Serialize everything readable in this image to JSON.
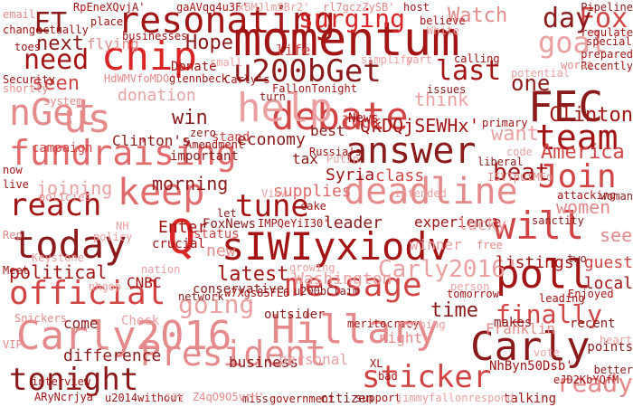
{
  "words": [
    {
      "text": "momentum",
      "color": "#a31515"
    },
    {
      "text": "sIWIyxiodv",
      "color": "#a31515"
    },
    {
      "text": "Hillary",
      "color": "#e58a8a"
    },
    {
      "text": "Carly2016",
      "color": "#e58a8a"
    },
    {
      "text": "Carly",
      "color": "#8b1a1a"
    },
    {
      "text": "debate",
      "color": "#d14545"
    },
    {
      "text": "chip",
      "color": "#d92525"
    },
    {
      "text": "fundraising",
      "color": "#e06a6a"
    },
    {
      "text": "deadline",
      "color": "#e58a8a"
    },
    {
      "text": "today",
      "color": "#8b1a1a"
    },
    {
      "text": "answer",
      "color": "#8b1a1a"
    },
    {
      "text": "FEC",
      "color": "#8b1a1a"
    },
    {
      "text": "poll",
      "color": "#a31515"
    },
    {
      "text": "President",
      "color": "#e58a8a"
    },
    {
      "text": "message",
      "color": "#d14545"
    },
    {
      "text": "keep",
      "color": "#e06a6a"
    },
    {
      "text": "help",
      "color": "#eaa0a0"
    },
    {
      "text": "nGet",
      "color": "#e58a8a"
    },
    {
      "text": "us",
      "color": "#e58a8a"
    },
    {
      "text": "resonating",
      "color": "#a31515"
    },
    {
      "text": "will",
      "color": "#d14545"
    },
    {
      "text": "u200bGet",
      "color": "#8b1a1a"
    },
    {
      "text": "official",
      "color": "#d14545"
    },
    {
      "text": "Q",
      "color": "#d92525"
    },
    {
      "text": "team",
      "color": "#a31515"
    },
    {
      "text": "tonight",
      "color": "#8b1a1a"
    },
    {
      "text": "sticker",
      "color": "#d14545"
    },
    {
      "text": "reach",
      "color": "#a31515"
    },
    {
      "text": "Join",
      "color": "#d14545"
    },
    {
      "text": "tune",
      "color": "#a31515"
    },
    {
      "text": "need",
      "color": "#a31515"
    },
    {
      "text": "goal",
      "color": "#eaa0a0"
    },
    {
      "text": "surging",
      "color": "#d92525"
    },
    {
      "text": "last",
      "color": "#a31515"
    },
    {
      "text": "finally",
      "color": "#d14545"
    },
    {
      "text": "ready",
      "color": "#e58a8a"
    },
    {
      "text": "going",
      "color": "#eaa0a0"
    },
    {
      "text": "political",
      "color": "#a31515"
    },
    {
      "text": "Carly2016'",
      "color": "#eaa0a0"
    },
    {
      "text": "ET",
      "color": "#8b1a1a"
    },
    {
      "text": "Fox",
      "color": "#d14545"
    },
    {
      "text": "day",
      "color": "#8b1a1a"
    },
    {
      "text": "Watch",
      "color": "#e58a8a"
    },
    {
      "text": "Hope",
      "color": "#8b1a1a"
    },
    {
      "text": "next",
      "color": "#8b1a1a"
    },
    {
      "text": "seen",
      "color": "#d14545"
    },
    {
      "text": "one",
      "color": "#8b1a1a"
    },
    {
      "text": "QkDQjSEWHx'",
      "color": "#a31515"
    },
    {
      "text": "Clinton",
      "color": "#a31515"
    },
    {
      "text": "America",
      "color": "#d14545"
    },
    {
      "text": "women",
      "color": "#e58a8a"
    },
    {
      "text": "beat",
      "color": "#a31515"
    },
    {
      "text": "want",
      "color": "#eaa0a0"
    },
    {
      "text": "joining",
      "color": "#eaa0a0"
    },
    {
      "text": "win",
      "color": "#8b1a1a"
    },
    {
      "text": "donation",
      "color": "#eaa0a0"
    },
    {
      "text": "think",
      "color": "#eaa0a0"
    },
    {
      "text": "look",
      "color": "#d14545"
    },
    {
      "text": "time",
      "color": "#8b1a1a"
    },
    {
      "text": "latest",
      "color": "#a31515"
    },
    {
      "text": "new",
      "color": "#e58a8a"
    },
    {
      "text": "Washington",
      "color": "#eaa0a0"
    },
    {
      "text": "economy",
      "color": "#8b1a1a"
    },
    {
      "text": "morning",
      "color": "#8b1a1a"
    },
    {
      "text": "campaign",
      "color": "#d14545"
    },
    {
      "text": "leader",
      "color": "#8b1a1a"
    },
    {
      "text": "listings",
      "color": "#a31515"
    },
    {
      "text": "see",
      "color": "#e58a8a"
    },
    {
      "text": "guest",
      "color": "#d14545"
    },
    {
      "text": "local",
      "color": "#a31515"
    },
    {
      "text": "Enter",
      "color": "#a31515"
    },
    {
      "text": "supplies",
      "color": "#e06a6a"
    },
    {
      "text": "class",
      "color": "#d14545"
    },
    {
      "text": "Syria",
      "color": "#a31515"
    },
    {
      "text": "difference",
      "color": "#8b1a1a"
    },
    {
      "text": "business",
      "color": "#8b1a1a"
    },
    {
      "text": "personal",
      "color": "#eaa0a0"
    },
    {
      "text": "NhByn50Dsb'",
      "color": "#a31515"
    },
    {
      "text": "CNBC",
      "color": "#a31515"
    },
    {
      "text": "come",
      "color": "#8b1a1a"
    },
    {
      "text": "Check",
      "color": "#eaa0a0"
    },
    {
      "text": "conservative",
      "color": "#8b1a1a"
    },
    {
      "text": "important",
      "color": "#8b1a1a"
    },
    {
      "text": "Clinton's",
      "color": "#8b1a1a"
    },
    {
      "text": "stand",
      "color": "#d14545"
    },
    {
      "text": "best",
      "color": "#8b1a1a"
    },
    {
      "text": "tax",
      "color": "#8b1a1a"
    },
    {
      "text": "News",
      "color": "#a31515"
    },
    {
      "text": "experience",
      "color": "#a31515"
    },
    {
      "text": "winner",
      "color": "#eaa0a0"
    },
    {
      "text": "lucky",
      "color": "#eaa0a0"
    },
    {
      "text": "flying",
      "color": "#e58a8a"
    },
    {
      "text": "Donate",
      "color": "#a31515"
    },
    {
      "text": "life",
      "color": "#d14545"
    },
    {
      "text": "FoxNews",
      "color": "#8b1a1a"
    },
    {
      "text": "IMPQeYiI30'",
      "color": "#a31515"
    },
    {
      "text": "status",
      "color": "#d14545"
    },
    {
      "text": "crucial",
      "color": "#a31515"
    },
    {
      "text": "outsider",
      "color": "#8b1a1a"
    },
    {
      "text": "night",
      "color": "#e58a8a"
    },
    {
      "text": "Franklin",
      "color": "#e58a8a"
    },
    {
      "text": "makes",
      "color": "#8b1a1a"
    },
    {
      "text": "recent",
      "color": "#8b1a1a"
    },
    {
      "text": "points",
      "color": "#8b1a1a"
    },
    {
      "text": "better",
      "color": "#8b1a1a"
    },
    {
      "text": "eJD2KbYQfM",
      "color": "#a31515"
    },
    {
      "text": "talking",
      "color": "#a31515"
    },
    {
      "text": "support",
      "color": "#a31515"
    },
    {
      "text": "citizen",
      "color": "#8b1a1a"
    },
    {
      "text": "government",
      "color": "#a31515"
    },
    {
      "text": "miss",
      "color": "#8b1a1a"
    },
    {
      "text": "Z4qO9O5vrH'",
      "color": "#e58a8a"
    },
    {
      "text": "u2014without",
      "color": "#a31515"
    },
    {
      "text": "ARyNcrjya'",
      "color": "#a31515"
    },
    {
      "text": "interview",
      "color": "#a31515"
    },
    {
      "text": "VIP",
      "color": "#e58a8a"
    },
    {
      "text": "Snickers",
      "color": "#e58a8a"
    },
    {
      "text": "Meet",
      "color": "#a31515"
    },
    {
      "text": "Rep",
      "color": "#e58a8a"
    },
    {
      "text": "Keystone",
      "color": "#eaa0a0"
    },
    {
      "text": "policies",
      "color": "#e58a8a"
    },
    {
      "text": "live",
      "color": "#a31515"
    },
    {
      "text": "now",
      "color": "#a31515"
    },
    {
      "text": "system",
      "color": "#e58a8a"
    },
    {
      "text": "shortly",
      "color": "#e58a8a"
    },
    {
      "text": "Security",
      "color": "#a31515"
    },
    {
      "text": "toes",
      "color": "#a31515"
    },
    {
      "text": "change",
      "color": "#a31515"
    },
    {
      "text": "email",
      "color": "#e58a8a"
    },
    {
      "text": "RpEneXQvjA'",
      "color": "#a31515"
    },
    {
      "text": "actually",
      "color": "#a31515"
    },
    {
      "text": "place",
      "color": "#a31515"
    },
    {
      "text": "gaAVqq4u3F'",
      "color": "#a31515"
    },
    {
      "text": "xBMJlmSBr2'",
      "color": "#eaa0a0"
    },
    {
      "text": "rl7gczZySB'",
      "color": "#e58a8a"
    },
    {
      "text": "host",
      "color": "#a31515"
    },
    {
      "text": "believe",
      "color": "#a31515"
    },
    {
      "text": "White",
      "color": "#eaa0a0"
    },
    {
      "text": "Pipeline",
      "color": "#8b1a1a"
    },
    {
      "text": "regulate",
      "color": "#a31515"
    },
    {
      "text": "special",
      "color": "#a31515"
    },
    {
      "text": "prepared",
      "color": "#a31515"
    },
    {
      "text": "Recently",
      "color": "#a31515"
    },
    {
      "text": "worst",
      "color": "#e58a8a"
    },
    {
      "text": "potential",
      "color": "#eaa0a0"
    },
    {
      "text": "calling",
      "color": "#a31515"
    },
    {
      "text": "simplify",
      "color": "#eaa0a0"
    },
    {
      "text": "part",
      "color": "#eaa0a0"
    },
    {
      "text": "issues",
      "color": "#8b1a1a"
    },
    {
      "text": "FallonTonight",
      "color": "#a31515"
    },
    {
      "text": "turn",
      "color": "#8b1a1a"
    },
    {
      "text": "Carly's",
      "color": "#a31515"
    },
    {
      "text": "small",
      "color": "#eaa0a0"
    },
    {
      "text": "businesses",
      "color": "#a31515"
    },
    {
      "text": "HdWMVfoMDO'",
      "color": "#e58a8a"
    },
    {
      "text": "glennbeck",
      "color": "#a31515"
    },
    {
      "text": "zero",
      "color": "#8b1a1a"
    },
    {
      "text": "Amendment",
      "color": "#a31515"
    },
    {
      "text": "primary",
      "color": "#a31515"
    },
    {
      "text": "code",
      "color": "#eaa0a0"
    },
    {
      "text": "liberal",
      "color": "#8b1a1a"
    },
    {
      "text": "intended",
      "color": "#eaa0a0"
    },
    {
      "text": "ISVTputMEo",
      "color": "#e58a8a"
    },
    {
      "text": "attacking",
      "color": "#a31515"
    },
    {
      "text": "woman",
      "color": "#8b1a1a"
    },
    {
      "text": "sanctity",
      "color": "#8b1a1a"
    },
    {
      "text": "two",
      "color": "#8b1a1a"
    },
    {
      "text": "free",
      "color": "#e58a8a"
    },
    {
      "text": "Russia's",
      "color": "#a31515"
    },
    {
      "text": "Putin",
      "color": "#eaa0a0"
    },
    {
      "text": "cake",
      "color": "#a31515"
    },
    {
      "text": "View",
      "color": "#eaa0a0"
    },
    {
      "text": "let",
      "color": "#8b1a1a"
    },
    {
      "text": "NH",
      "color": "#eaa0a0"
    },
    {
      "text": "policy",
      "color": "#eaa0a0"
    },
    {
      "text": "nation",
      "color": "#eaa0a0"
    },
    {
      "text": "nhgop",
      "color": "#eaa0a0"
    },
    {
      "text": "network",
      "color": "#8b1a1a"
    },
    {
      "text": "w7Xgs85FL6",
      "color": "#a31515"
    },
    {
      "text": "growing",
      "color": "#eaa0a0"
    },
    {
      "text": "u200bClaim",
      "color": "#8b1a1a"
    },
    {
      "text": "meritocracy",
      "color": "#a31515"
    },
    {
      "text": "nothing",
      "color": "#eaa0a0"
    },
    {
      "text": "person",
      "color": "#eaa0a0"
    },
    {
      "text": "tomorrow",
      "color": "#a31515"
    },
    {
      "text": "leading",
      "color": "#a31515"
    },
    {
      "text": "Enjoyed",
      "color": "#a31515"
    },
    {
      "text": "vote",
      "color": "#eaa0a0"
    },
    {
      "text": "heart",
      "color": "#eaa0a0"
    },
    {
      "text": "XL",
      "color": "#a31515"
    },
    {
      "text": "bad",
      "color": "#a31515"
    },
    {
      "text": "jimmyfallonrespond",
      "color": "#eaa0a0"
    },
    {
      "text": "say",
      "color": "#eaa0a0"
    }
  ]
}
